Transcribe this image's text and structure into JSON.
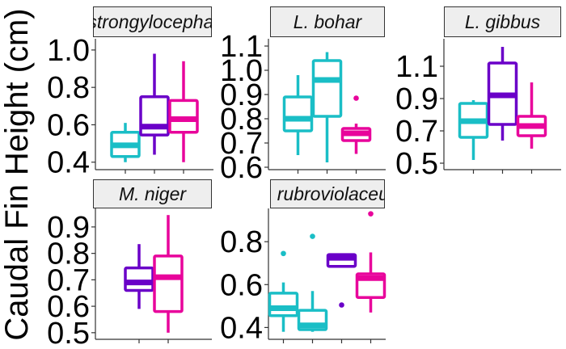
{
  "colors": {
    "teal": "#1abec6",
    "purple": "#6a00c8",
    "magenta": "#e8049b",
    "strip_fill": "#eeeeee",
    "strip_border": "#333333"
  },
  "chart_data": {
    "type": "box",
    "ylabel": "Caudal Fin Height (cm)",
    "panels": [
      {
        "strip": "P. strongylocephalus",
        "ylim": [
          0.36,
          1.06
        ],
        "yticks": [
          0.4,
          0.6,
          0.8,
          1.0
        ],
        "ytick_labels": [
          "0.4",
          "0.6",
          "0.8",
          "1.0"
        ],
        "n_slots": 3,
        "boxes": [
          {
            "slot": 0,
            "color": "teal",
            "min": 0.4,
            "q1": 0.43,
            "median": 0.49,
            "q3": 0.56,
            "max": 0.61,
            "outliers": []
          },
          {
            "slot": 1,
            "color": "purple",
            "min": 0.44,
            "q1": 0.545,
            "median": 0.59,
            "q3": 0.75,
            "max": 0.98,
            "outliers": []
          },
          {
            "slot": 2,
            "color": "magenta",
            "min": 0.4,
            "q1": 0.56,
            "median": 0.63,
            "q3": 0.73,
            "max": 0.94,
            "outliers": []
          }
        ]
      },
      {
        "strip": "L. bohar",
        "ylim": [
          0.59,
          1.13
        ],
        "yticks": [
          0.6,
          0.7,
          0.8,
          0.9,
          1.0,
          1.1
        ],
        "ytick_labels": [
          "0.6",
          "0.7",
          "0.8",
          "0.9",
          "1.0",
          "1.1"
        ],
        "n_slots": 3,
        "boxes": [
          {
            "slot": 0,
            "color": "teal",
            "min": 0.65,
            "q1": 0.75,
            "median": 0.8,
            "q3": 0.89,
            "max": 0.98,
            "outliers": []
          },
          {
            "slot": 1,
            "color": "teal",
            "min": 0.62,
            "q1": 0.81,
            "median": 0.96,
            "q3": 1.04,
            "max": 1.075,
            "outliers": []
          },
          {
            "slot": 2,
            "color": "magenta",
            "min": 0.655,
            "q1": 0.71,
            "median": 0.74,
            "q3": 0.76,
            "max": 0.78,
            "outliers": [
              0.885
            ]
          }
        ]
      },
      {
        "strip": "L. gibbus",
        "ylim": [
          0.46,
          1.27
        ],
        "yticks": [
          0.5,
          0.7,
          0.9,
          1.1
        ],
        "ytick_labels": [
          "0.5",
          "0.7",
          "0.9",
          "1.1"
        ],
        "n_slots": 3,
        "boxes": [
          {
            "slot": 0,
            "color": "teal",
            "min": 0.52,
            "q1": 0.66,
            "median": 0.76,
            "q3": 0.87,
            "max": 0.89,
            "outliers": []
          },
          {
            "slot": 1,
            "color": "purple",
            "min": 0.64,
            "q1": 0.74,
            "median": 0.92,
            "q3": 1.12,
            "max": 1.22,
            "outliers": []
          },
          {
            "slot": 2,
            "color": "magenta",
            "min": 0.59,
            "q1": 0.67,
            "median": 0.73,
            "q3": 0.79,
            "max": 1.0,
            "outliers": []
          }
        ]
      },
      {
        "strip": "M. niger",
        "ylim": [
          0.475,
          0.97
        ],
        "yticks": [
          0.5,
          0.6,
          0.7,
          0.8,
          0.9
        ],
        "ytick_labels": [
          "0.5",
          "0.6",
          "0.7",
          "0.8",
          "0.9"
        ],
        "n_slots": 2,
        "boxes": [
          {
            "slot": 0,
            "color": "purple",
            "min": 0.59,
            "q1": 0.66,
            "median": 0.69,
            "q3": 0.745,
            "max": 0.835,
            "outliers": []
          },
          {
            "slot": 1,
            "color": "magenta",
            "min": 0.5,
            "q1": 0.58,
            "median": 0.71,
            "q3": 0.79,
            "max": 0.945,
            "outliers": []
          }
        ]
      },
      {
        "strip": "P. rubroviolaceus",
        "ylim": [
          0.345,
          0.955
        ],
        "yticks": [
          0.4,
          0.6,
          0.8
        ],
        "ytick_labels": [
          "0.4",
          "0.6",
          "0.8"
        ],
        "n_slots": 4,
        "boxes": [
          {
            "slot": 0,
            "color": "teal",
            "min": 0.38,
            "q1": 0.455,
            "median": 0.49,
            "q3": 0.56,
            "max": 0.61,
            "outliers": [
              0.745
            ]
          },
          {
            "slot": 1,
            "color": "teal",
            "min": 0.38,
            "q1": 0.39,
            "median": 0.41,
            "q3": 0.48,
            "max": 0.57,
            "outliers": [
              0.825
            ]
          },
          {
            "slot": 2,
            "color": "purple",
            "min": 0.68,
            "q1": 0.685,
            "median": 0.725,
            "q3": 0.74,
            "max": 0.745,
            "outliers": [
              0.505
            ]
          },
          {
            "slot": 3,
            "color": "magenta",
            "min": 0.47,
            "q1": 0.54,
            "median": 0.63,
            "q3": 0.65,
            "max": 0.75,
            "outliers": [
              0.93
            ]
          }
        ]
      }
    ]
  }
}
